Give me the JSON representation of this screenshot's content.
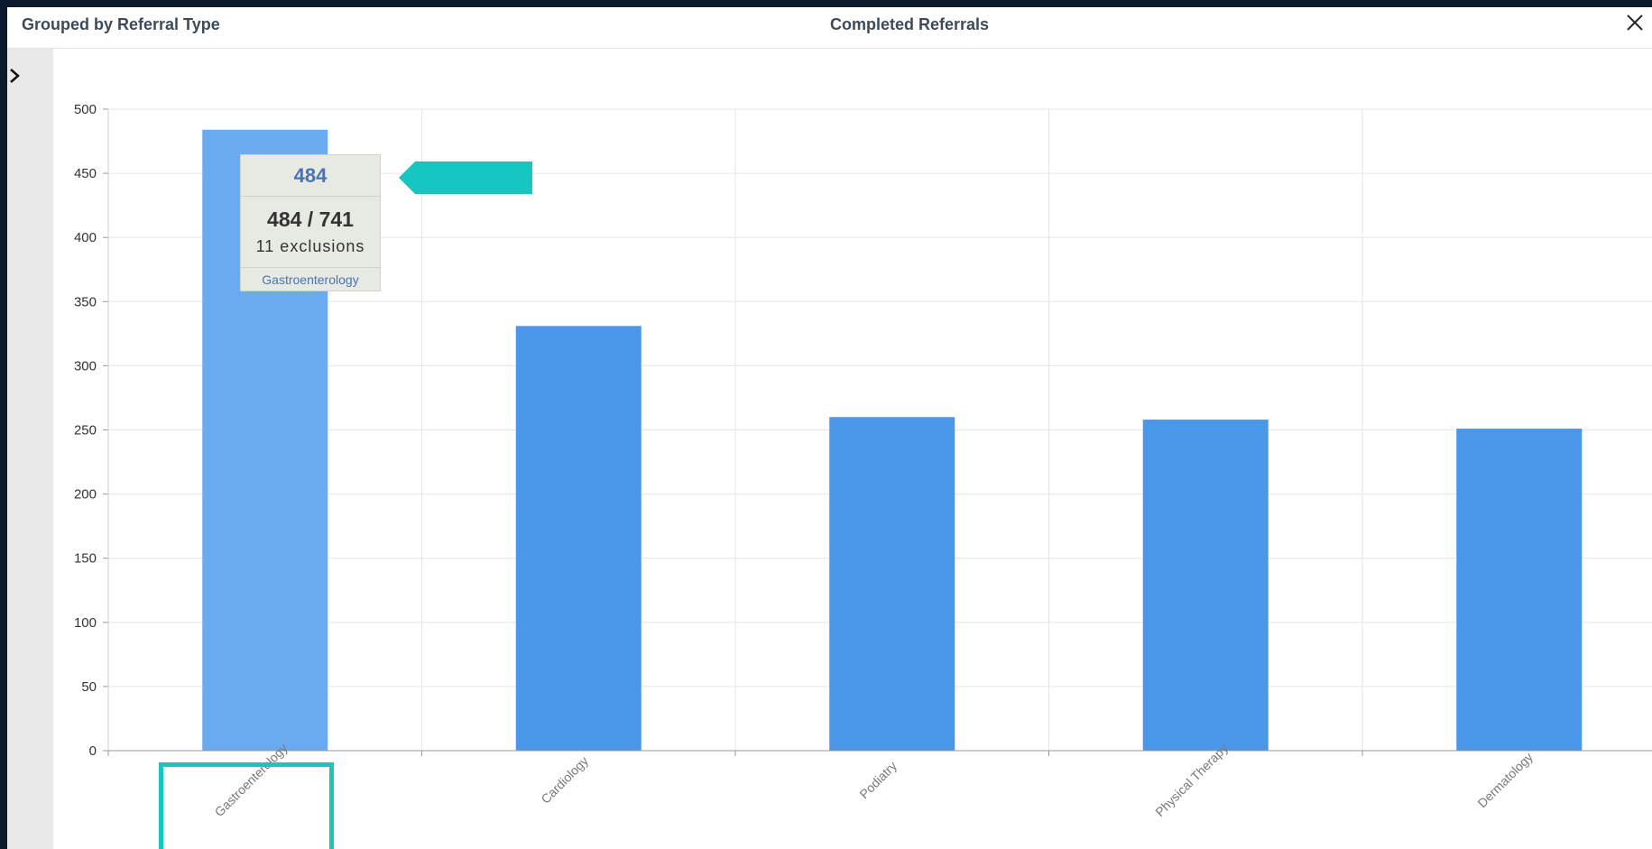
{
  "header": {
    "group_title": "Grouped by Referral Type",
    "chart_title": "Completed Referrals"
  },
  "icons": {
    "close": "close-icon",
    "expand": "chevron-right-icon"
  },
  "colors": {
    "bar": "#4a96e8",
    "bar_highlight": "#6aaaf0",
    "annotation": "#16c6c0",
    "tooltip_accent": "#4a72b8"
  },
  "chart_data": {
    "type": "bar",
    "title": "Completed Referrals",
    "subtitle": "Grouped by Referral Type",
    "categories": [
      "Gastroenterology",
      "Cardiology",
      "Podiatry",
      "Physical Therapy",
      "Dermatology"
    ],
    "values": [
      484,
      331,
      260,
      258,
      251
    ],
    "ylim": [
      0,
      500
    ],
    "yticks": [
      0,
      50,
      100,
      150,
      200,
      250,
      300,
      350,
      400,
      450,
      500
    ],
    "xlabel": "",
    "ylabel": "",
    "grid": true,
    "highlighted_category": "Gastroenterology"
  },
  "tooltip": {
    "value": "484",
    "ratio": "484 / 741",
    "exclusions": "11 exclusions",
    "category": "Gastroenterology"
  }
}
